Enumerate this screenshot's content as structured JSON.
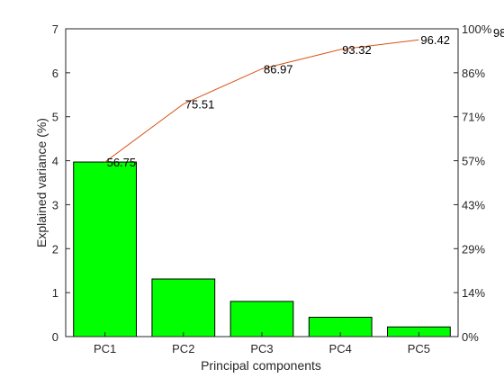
{
  "chart_data": {
    "type": "bar",
    "categories": [
      "PC1",
      "PC2",
      "PC3",
      "PC4",
      "PC5"
    ],
    "values": [
      3.97,
      1.31,
      0.8,
      0.44,
      0.22
    ],
    "xlabel": "Principal components",
    "ylabel": "Explained variance (%)",
    "ylim": [
      0,
      7
    ],
    "yticks": [
      "0",
      "1",
      "2",
      "3",
      "4",
      "5",
      "6",
      "7"
    ],
    "y2lim": [
      0,
      7
    ],
    "y2_ticks": [
      {
        "value": 0,
        "label": "0%"
      },
      {
        "value": 1,
        "label": "14%"
      },
      {
        "value": 2,
        "label": "29%"
      },
      {
        "value": 3,
        "label": "43%"
      },
      {
        "value": 4,
        "label": "57%"
      },
      {
        "value": 5,
        "label": "71%"
      },
      {
        "value": 6,
        "label": "86%"
      },
      {
        "value": 7,
        "label": "100%"
      }
    ],
    "cumulative": {
      "values": [
        3.97,
        5.29,
        6.09,
        6.53,
        6.75
      ],
      "labels": [
        "56.75",
        "75.51",
        "86.97",
        "93.32",
        "96.42"
      ]
    },
    "extra_label": "98",
    "colors": {
      "bar_fill": "#00ff00",
      "bar_stroke": "#000000",
      "line": "#d95319",
      "axis": "#262626"
    },
    "grid": false
  }
}
